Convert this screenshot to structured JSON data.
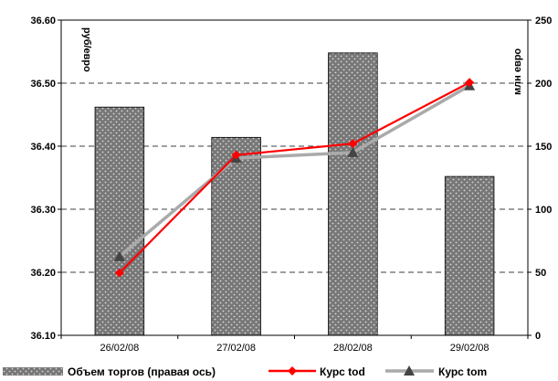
{
  "chart_data": {
    "type": "bar+line",
    "categories": [
      "26/02/08",
      "27/02/08",
      "28/02/08",
      "29/02/08"
    ],
    "left_axis": {
      "label": "руб/евро",
      "range": [
        36.1,
        36.6
      ],
      "ticks": [
        "36.10",
        "36.20",
        "36.30",
        "36.40",
        "36.50",
        "36.60"
      ]
    },
    "right_axis": {
      "label": "млн евро",
      "range": [
        0,
        250
      ],
      "ticks": [
        "0",
        "50",
        "100",
        "150",
        "200",
        "250"
      ]
    },
    "series": [
      {
        "name": "Объем торгов (правая ось)",
        "kind": "bar",
        "axis": "right",
        "values": [
          181,
          157,
          224,
          126
        ]
      },
      {
        "name": "Курс tod",
        "kind": "line",
        "axis": "left",
        "marker": "diamond",
        "color": "#ff0000",
        "values": [
          36.199,
          36.386,
          36.404,
          36.501
        ]
      },
      {
        "name": "Курс tom",
        "kind": "line",
        "axis": "left",
        "marker": "triangle",
        "color": "#aaaaaa",
        "values": [
          36.225,
          36.381,
          36.39,
          36.496
        ]
      }
    ],
    "grid": "horizontal dashed",
    "legend_position": "bottom",
    "colors": {
      "bar_fill": "#777777",
      "bar_dots": "#d8d8d8",
      "tod": "#ff0000",
      "tom": "#aaaaaa",
      "tom_marker": "#444444"
    }
  }
}
